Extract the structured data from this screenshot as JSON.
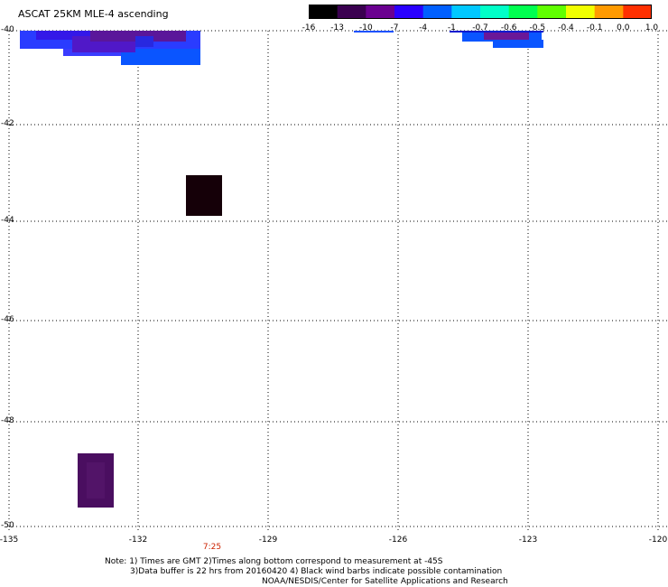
{
  "title": "ASCAT 25KM MLE-4 ascending",
  "colorbar": {
    "labels": [
      "-16",
      "-13",
      "-10",
      "-7",
      "-4",
      "-1",
      "-0.7",
      "-0.6",
      "-0.5",
      "-0.4",
      "-0.1",
      "0.0",
      "1.0"
    ],
    "colors": [
      "#000000",
      "#3a0050",
      "#6a0090",
      "#2a00ff",
      "#0060ff",
      "#00c8ff",
      "#00ffc8",
      "#00ff50",
      "#60ff00",
      "#f0ff00",
      "#ff9a00",
      "#ff3000"
    ]
  },
  "axes": {
    "lat_labels": [
      "-40",
      "-42",
      "-44",
      "-46",
      "-48",
      "-50"
    ],
    "lon_labels": [
      "-135",
      "-132",
      "-129",
      "-126",
      "-123",
      "-120"
    ]
  },
  "time_label": "7:25",
  "notes": {
    "line1": "Note: 1) Times are GMT 2)Times along bottom correspond to measurement at -45S",
    "line2": "3)Data buffer is 22 hrs from 20160420 4) Black wind barbs indicate possible contamination",
    "line3": "NOAA/NESDIS/Center for Satellite Applications and Research"
  }
}
